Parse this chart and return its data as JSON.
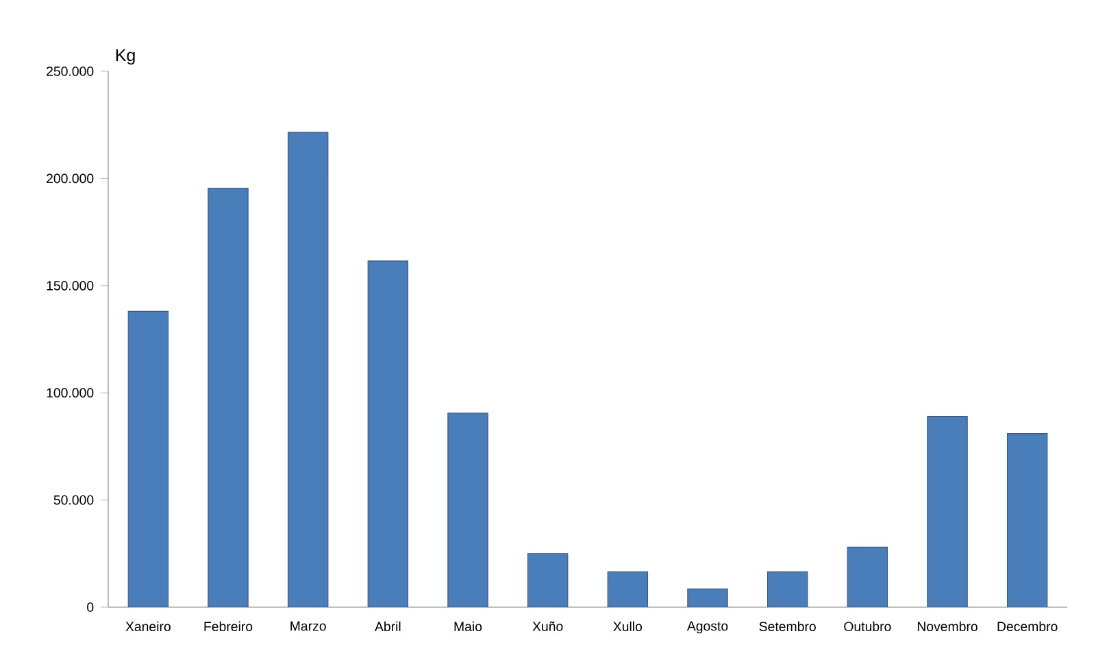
{
  "chart_data": {
    "type": "bar",
    "ylabel": "Kg",
    "categories": [
      "Xaneiro",
      "Febreiro",
      "Marzo",
      "Abril",
      "Maio",
      "Xuño",
      "Xullo",
      "Agosto",
      "Setembro",
      "Outubro",
      "Novembro",
      "Decembro"
    ],
    "values": [
      138000,
      195500,
      221500,
      161500,
      90500,
      25000,
      16500,
      8500,
      16500,
      28000,
      89000,
      81000
    ],
    "color": "#4a7ebb",
    "ylim": [
      0,
      250000
    ],
    "yticks": [
      {
        "value": 0,
        "label": "0"
      },
      {
        "value": 50000,
        "label": "50.000"
      },
      {
        "value": 100000,
        "label": "100.000"
      },
      {
        "value": 150000,
        "label": "150.000"
      },
      {
        "value": 200000,
        "label": "200.000"
      },
      {
        "value": 250000,
        "label": "250.000"
      }
    ],
    "grid": false
  }
}
